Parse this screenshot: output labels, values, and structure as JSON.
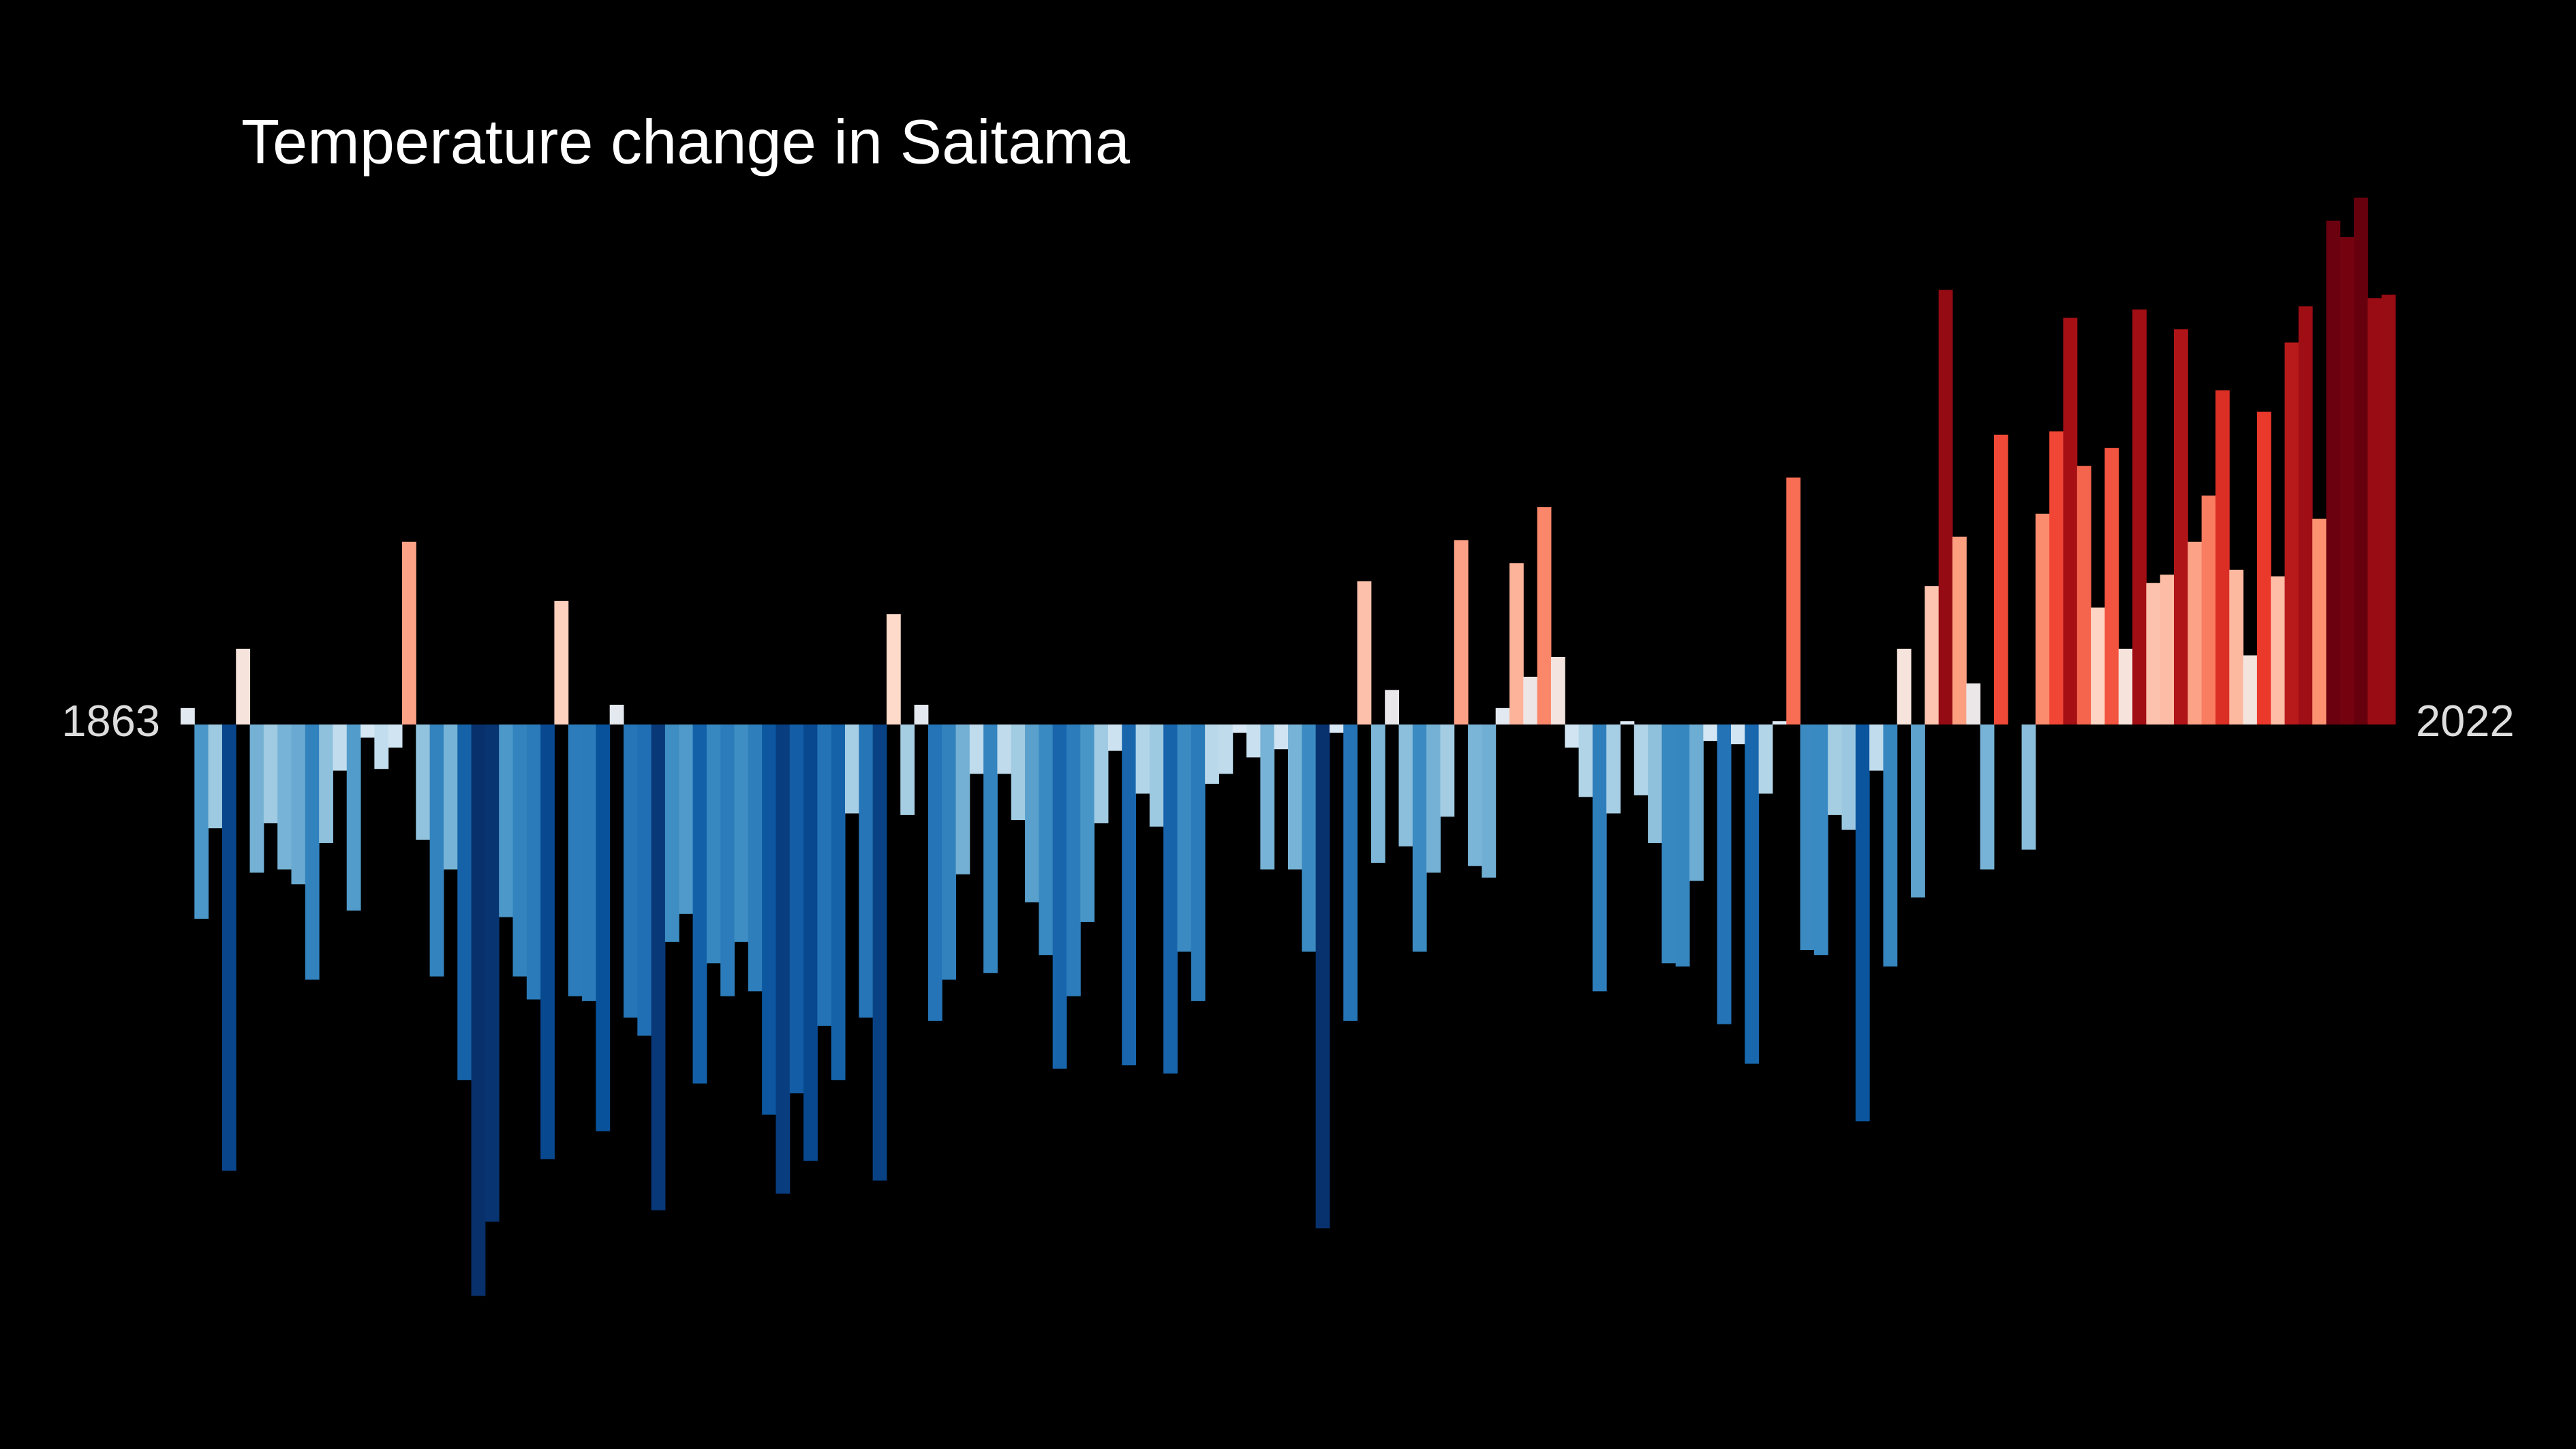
{
  "chart_data": {
    "type": "bar",
    "title": "Temperature change in Saitama",
    "categories": [
      "1863",
      null,
      null,
      null,
      null,
      null,
      null,
      null,
      null,
      null,
      null,
      null,
      null,
      null,
      null,
      null,
      null,
      null,
      null,
      null,
      null,
      null,
      null,
      null,
      null,
      null,
      null,
      null,
      null,
      null,
      null,
      null,
      null,
      null,
      null,
      null,
      null,
      null,
      null,
      null,
      null,
      null,
      null,
      null,
      null,
      null,
      null,
      null,
      null,
      null,
      null,
      null,
      null,
      null,
      null,
      null,
      null,
      null,
      null,
      null,
      null,
      null,
      null,
      null,
      null,
      null,
      null,
      null,
      null,
      null,
      null,
      null,
      null,
      null,
      null,
      null,
      null,
      null,
      null,
      null,
      null,
      null,
      null,
      null,
      null,
      null,
      null,
      null,
      null,
      null,
      null,
      null,
      null,
      null,
      null,
      null,
      null,
      null,
      null,
      null,
      null,
      null,
      null,
      null,
      null,
      null,
      null,
      null,
      null,
      null,
      null,
      null,
      null,
      null,
      null,
      null,
      null,
      null,
      null,
      null,
      null,
      null,
      null,
      null,
      null,
      null,
      null,
      null,
      null,
      null,
      null,
      null,
      null,
      null,
      null,
      null,
      null,
      null,
      null,
      null,
      null,
      null,
      null,
      null,
      null,
      null,
      null,
      null,
      null,
      null,
      null,
      null,
      null,
      null,
      null,
      null,
      null,
      null,
      null,
      "2022"
    ],
    "values": [
      0.1,
      -1.18,
      -0.63,
      -2.71,
      0.46,
      -0.9,
      -0.6,
      -0.88,
      -0.97,
      -1.55,
      -0.72,
      -0.28,
      -1.13,
      -0.08,
      -0.27,
      -0.14,
      1.11,
      -0.7,
      -1.53,
      -0.88,
      -2.16,
      -3.47,
      -3.02,
      -1.17,
      -1.53,
      -1.67,
      -2.64,
      0.75,
      -1.65,
      -1.68,
      -2.47,
      0.12,
      -1.78,
      -1.89,
      -2.95,
      -1.32,
      -1.15,
      -2.18,
      -1.45,
      -1.65,
      -1.32,
      -1.62,
      -2.37,
      -2.85,
      -2.24,
      -2.65,
      -1.83,
      -2.16,
      -0.54,
      -1.78,
      -2.77,
      0.67,
      -0.55,
      0.12,
      -1.8,
      -1.55,
      -0.91,
      -0.3,
      -1.51,
      -0.3,
      -0.58,
      -1.08,
      -1.4,
      -2.09,
      -1.65,
      -1.2,
      -0.6,
      -0.16,
      -2.07,
      -0.42,
      -0.62,
      -2.12,
      -1.38,
      -1.68,
      -0.36,
      -0.3,
      -0.05,
      -0.2,
      -0.88,
      -0.15,
      -0.88,
      -1.38,
      -3.06,
      -0.05,
      -1.8,
      0.87,
      -0.84,
      0.21,
      -0.74,
      -1.38,
      -0.9,
      -0.56,
      1.12,
      -0.86,
      -0.93,
      0.1,
      0.98,
      0.29,
      1.32,
      0.41,
      -0.14,
      -0.44,
      -1.62,
      -0.54,
      0.02,
      -0.43,
      -0.72,
      -1.45,
      -1.47,
      -0.95,
      -0.1,
      -1.82,
      -0.12,
      -2.06,
      -0.42,
      0.02,
      1.5,
      -1.37,
      -1.4,
      -0.55,
      -0.64,
      -2.41,
      -0.28,
      -1.47,
      0.46,
      -1.05,
      0.84,
      2.64,
      1.14,
      0.25,
      -0.88,
      1.76,
      0.0,
      -0.76,
      1.28,
      1.78,
      2.47,
      1.57,
      0.71,
      1.68,
      0.46,
      2.52,
      0.86,
      0.91,
      2.4,
      1.11,
      1.39,
      2.03,
      0.94,
      0.42,
      1.9,
      0.9,
      2.32,
      2.54,
      1.25,
      3.06,
      2.96,
      3.2,
      2.59,
      2.61
    ],
    "ylim": [
      -4.4,
      4.4
    ],
    "clim": [
      -3.1,
      3.1
    ],
    "colormap": [
      "#08306b",
      "#08519c",
      "#2171b5",
      "#4292c6",
      "#9ecae1",
      "#deebf7",
      "#fee0d2",
      "#fc9272",
      "#ef3b2c",
      "#a50f15",
      "#67000d"
    ]
  }
}
